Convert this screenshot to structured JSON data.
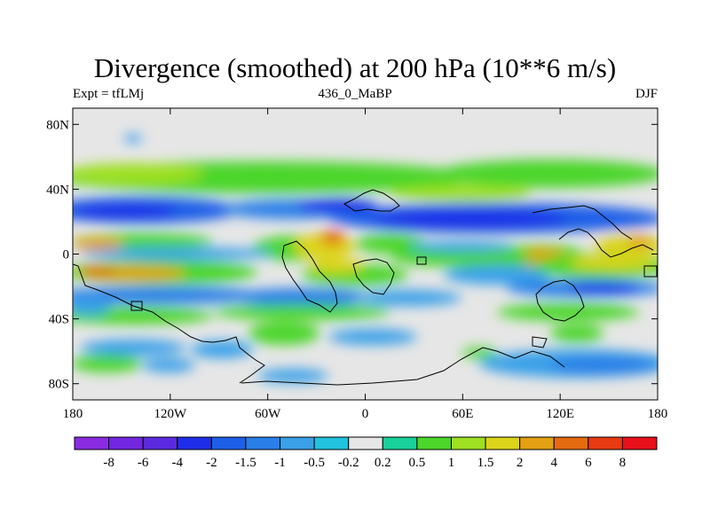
{
  "chart_data": {
    "type": "heatmap",
    "title": "Divergence (smoothed) at 200 hPa (10**6 m/s)",
    "left_label": "Expt = tfLMj",
    "center_label": "436_0_MaBP",
    "right_label": "DJF",
    "xlabel": "",
    "ylabel": "",
    "x_ticks": [
      "180",
      "120W",
      "60W",
      "0",
      "60E",
      "120E",
      "180"
    ],
    "x_range": [
      -180,
      180
    ],
    "y_ticks": [
      "80N",
      "40N",
      "0",
      "40S",
      "80S"
    ],
    "y_range": [
      -90,
      90
    ],
    "colorbar": {
      "levels": [
        "-8",
        "-6",
        "-4",
        "-2",
        "-1.5",
        "-1",
        "-0.5",
        "-0.2",
        "0.2",
        "0.5",
        "1",
        "1.5",
        "2",
        "4",
        "6",
        "8"
      ],
      "colors": [
        "#8a2be2",
        "#7326e0",
        "#5b2ae0",
        "#1f2ee8",
        "#1e5fe8",
        "#2a7fe8",
        "#3aa0e8",
        "#20c2de",
        "#e6e6e6",
        "#19d19a",
        "#4cd62a",
        "#9ee022",
        "#dcd41a",
        "#e2a012",
        "#e46a10",
        "#e83a12",
        "#e8101a"
      ]
    }
  }
}
